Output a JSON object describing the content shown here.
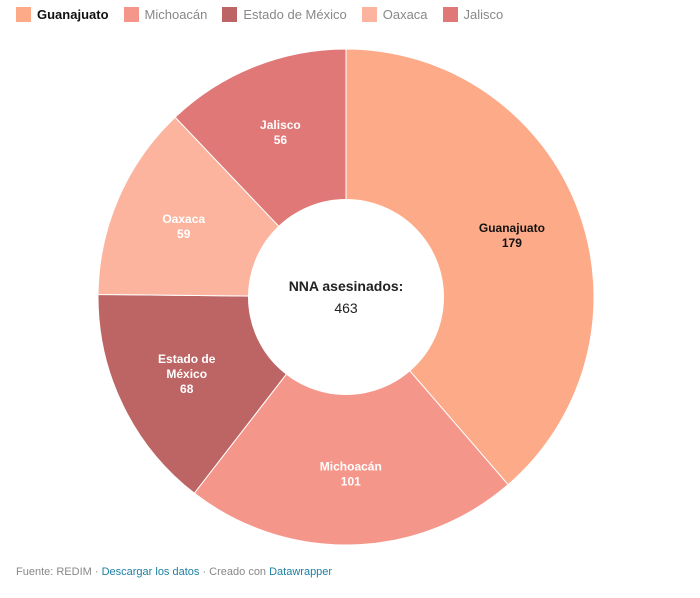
{
  "chart_data": {
    "type": "pie",
    "title": "",
    "center_label": "NNA asesinados:",
    "center_value": "463",
    "legend_position": "top",
    "categories": [
      "Guanajuato",
      "Michoacán",
      "Estado de México",
      "Oaxaca",
      "Jalisco"
    ],
    "values": [
      179,
      101,
      68,
      59,
      56
    ],
    "colors": [
      "#fdaa88",
      "#f5968a",
      "#bd6464",
      "#fcb49f",
      "#df7877"
    ],
    "label_colors": [
      "#111111",
      "#ffffff",
      "#ffffff",
      "#ffffff",
      "#ffffff"
    ]
  },
  "legend": {
    "active": 0
  },
  "footer": {
    "source_prefix": "Fuente: REDIM · ",
    "download_link": "Descargar los datos",
    "middle": " · Creado con ",
    "tool_link": "Datawrapper"
  }
}
